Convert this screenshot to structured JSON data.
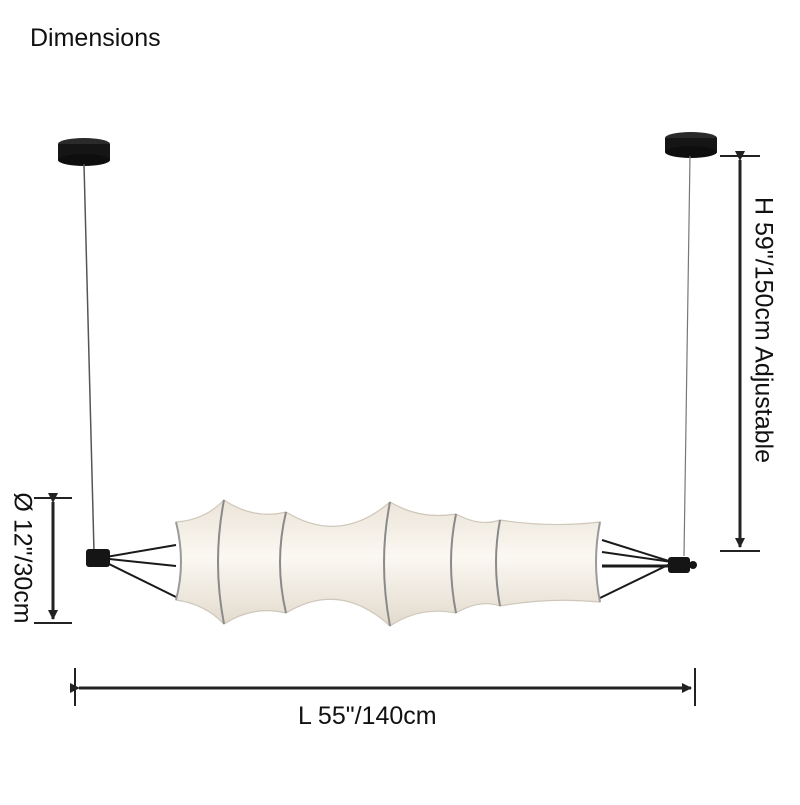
{
  "title": "Dimensions",
  "dimensions": {
    "length": "L 55\"/140cm",
    "height": "H 59\"/150cm Adjustable",
    "diameter": "Ø 12\"/30cm"
  },
  "colors": {
    "line": "#222222",
    "shade": "#f3eee4",
    "shade_shadow": "#d9d2c6",
    "metal": "#1a1a1a"
  }
}
